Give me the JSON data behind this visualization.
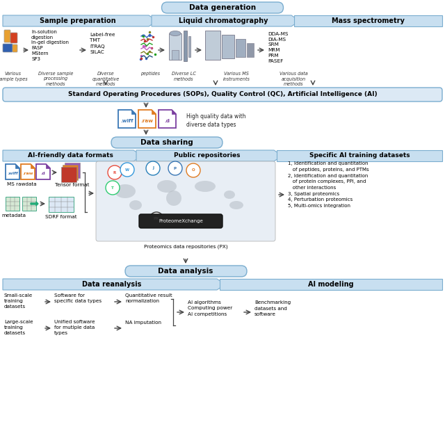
{
  "bg_color": "#ffffff",
  "light_blue": "#dce9f5",
  "banner_bg": "#c8dff0",
  "header_bg": "#c8dff0",
  "section_border": "#7aadcf",
  "arrow_color": "#444444",
  "section1_title": "Data generation",
  "banner1_labels": [
    "Sample preparation",
    "Liquid chromatography",
    "Mass spectrometry"
  ],
  "sample_prep_text": "In-solution\ndigestion\nIn-gel digestion\nFASP\nMStern\nSP3",
  "quant_text": "Label-free\nTMT\niTRAQ\nSILAC",
  "ms_text": "DDA-MS\nDIA-MS\nSRM\nMRM\nPRM\nPASEF",
  "caption1": [
    "Various\nsample types",
    "Diverse sample\nprocessing\nmethods",
    "Diverse\nquantitative\nmethods",
    "peptides",
    "Diverse LC\nmethods",
    "Various MS\ninstruments",
    "Various data\nacquisition\nmethods"
  ],
  "sop_text": "Standard Operating Procedures (SOPs), Quality Control (QC), Artificial Intelligence (AI)",
  "file_labels": [
    ".wiff",
    ".raw",
    ".d"
  ],
  "file_colors": [
    "#3a77b5",
    "#e07b20",
    "#7b3fa0"
  ],
  "hq_text": "High quality data with\ndiverse data types",
  "section2_title": "Data sharing",
  "banner2_labels": [
    "AI-friendly data formats",
    "Public repositories",
    "Specific AI training datasets"
  ],
  "aifriendly_text1": "MS rawdata",
  "aifriendly_text2": "metadata",
  "tensor_text": "Tensor format",
  "sdrf_text": "SDRF format",
  "px_text": "Proteomics data repositories (PX)",
  "ai_datasets_text": "1, Identification and quantitation\n   of peptides, proteins, and PTMs\n2, Identification and quantitation\n   of protein complexes, PPI, and\n   other interactions\n3, Spatial proteomics\n4, Perturbation proteomics\n5, Multi-omics integration",
  "section3_title": "Data analysis",
  "banner3_labels": [
    "Data reanalysis",
    "AI modeling"
  ],
  "small_scale": "Small-scale\ntraining\ndatasets",
  "large_scale": "Large-scale\ntraining\ndatasets",
  "software1": "Software for\nspecific data types",
  "software2": "Unified software\nfor mutiple data\ntypes",
  "norm_text": "Quantitative result\nnormalization",
  "na_text": "NA imputation",
  "ai_model_text": "AI algorithms\nComputing power\nAI competitions",
  "benchmark_text": "Benchmarking\ndatasets and\nsoftware"
}
